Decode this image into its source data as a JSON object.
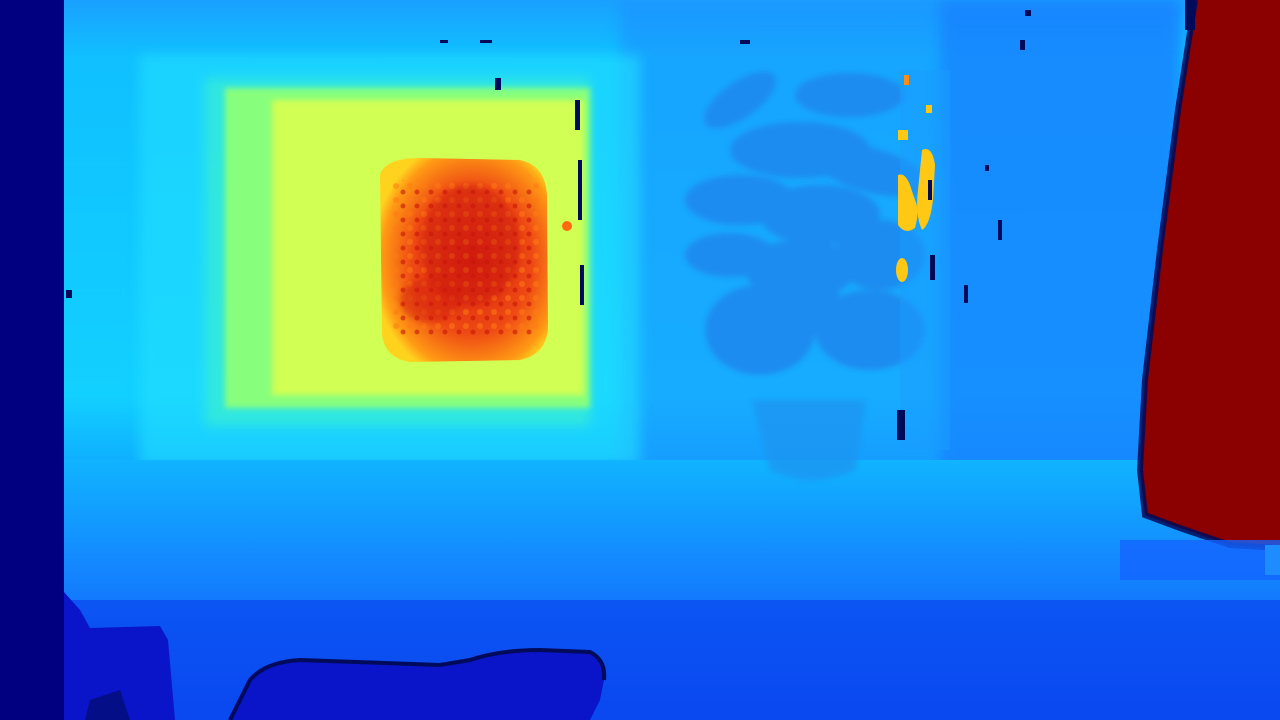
{
  "image": {
    "kind": "depth-map",
    "colormap": "jet",
    "colors": {
      "far_left_band": "#000080",
      "wall_light": "#0fc8ff",
      "wall_cyan": "#19e6ff",
      "floor_blue": "#1464ff",
      "plant_blue": "#1e8cf0",
      "frame_green": "#8cff78",
      "frame_yellow": "#d2ff50",
      "painting_orange": "#ffb414",
      "painting_red": "#e62814",
      "right_object_red": "#8b0000",
      "furniture_dark": "#0a14c8",
      "speck_yellow": "#ffc814",
      "edge_navy": "#000a5a"
    },
    "regions": [
      "left-invalid-band",
      "back-wall",
      "framed-picture",
      "plant",
      "window-edge",
      "right-near-object",
      "floor",
      "foreground-furniture"
    ]
  }
}
